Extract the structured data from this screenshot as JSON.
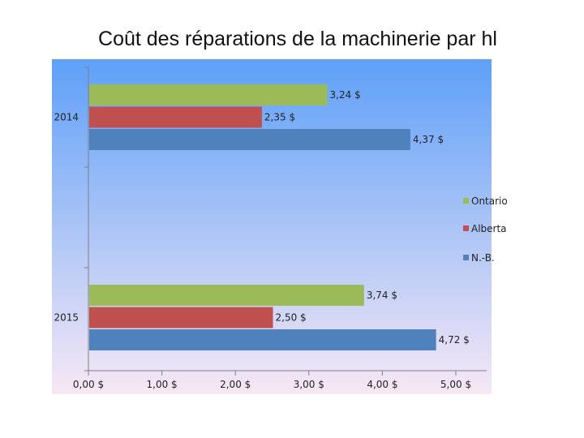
{
  "chart_data": {
    "type": "bar",
    "orientation": "horizontal",
    "title": "Coût des réparations de la machinerie par hl",
    "categories": [
      "2014",
      "2015"
    ],
    "series": [
      {
        "name": "Ontario",
        "values": [
          3.24,
          3.74
        ],
        "labels": [
          "3,24 $",
          "3,74 $"
        ],
        "color": "#9bbb59"
      },
      {
        "name": "Alberta",
        "values": [
          2.35,
          2.5
        ],
        "labels": [
          "2,35 $",
          "2,50 $"
        ],
        "color": "#c0504d"
      },
      {
        "name": "N.-B.",
        "values": [
          4.37,
          4.72
        ],
        "labels": [
          "4,37 $",
          "4,72 $"
        ],
        "color": "#4f81bd"
      }
    ],
    "xlim": [
      0,
      5
    ],
    "xticks": [
      0,
      1,
      2,
      3,
      4,
      5
    ],
    "xtick_labels": [
      "0,00 $",
      "1,00 $",
      "2,00 $",
      "3,00 $",
      "4,00 $",
      "5,00 $"
    ],
    "legend_position": "right",
    "grid": false,
    "background_gradient": [
      "#5ea0f8",
      "#f7e8f5"
    ]
  }
}
